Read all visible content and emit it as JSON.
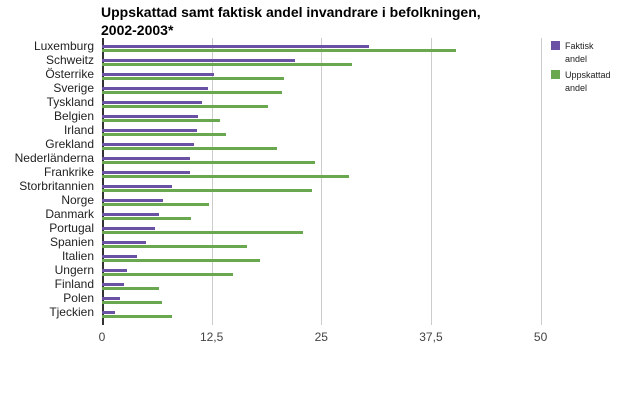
{
  "chart_data": {
    "type": "bar",
    "orientation": "horizontal",
    "title": "Uppskattad samt faktisk andel invandrare i befolkningen, 2002-2003*",
    "title_lines": [
      "Uppskattad samt faktisk andel invandrare i befolkningen,",
      "2002-2003*"
    ],
    "xlabel": "",
    "ylabel": "",
    "xlim": [
      0,
      50
    ],
    "x_ticks": [
      "0",
      "12,5",
      "25",
      "37,5",
      "50"
    ],
    "x_tick_values": [
      0,
      12.5,
      25,
      37.5,
      50
    ],
    "grid": true,
    "legend_position": "right",
    "colors": {
      "Faktisk andel": "#6a51a3",
      "Uppskattad andel": "#6aa84f"
    },
    "categories": [
      "Luxemburg",
      "Schweitz",
      "Österrike",
      "Sverige",
      "Tyskland",
      "Belgien",
      "Irland",
      "Grekland",
      "Nederländerna",
      "Frankrike",
      "Storbritannien",
      "Norge",
      "Danmark",
      "Portugal",
      "Spanien",
      "Italien",
      "Ungern",
      "Finland",
      "Polen",
      "Tjeckien"
    ],
    "series": [
      {
        "name": "Faktisk andel",
        "legend_lines": [
          "Faktisk",
          "andel"
        ],
        "color": "#6a51a3",
        "values": [
          30.4,
          22.0,
          12.8,
          12.1,
          11.4,
          10.9,
          10.8,
          10.5,
          10.0,
          10.0,
          8.0,
          7.0,
          6.5,
          6.0,
          5.0,
          4.0,
          2.9,
          2.5,
          2.0,
          1.5
        ]
      },
      {
        "name": "Uppskattad andel",
        "legend_lines": [
          "Uppskattad",
          "andel"
        ],
        "color": "#6aa84f",
        "values": [
          40.3,
          28.5,
          20.8,
          20.5,
          18.9,
          13.5,
          14.1,
          20.0,
          24.3,
          28.2,
          23.9,
          12.2,
          10.1,
          22.9,
          16.5,
          18.0,
          14.9,
          6.5,
          6.8,
          8.0
        ]
      }
    ]
  }
}
